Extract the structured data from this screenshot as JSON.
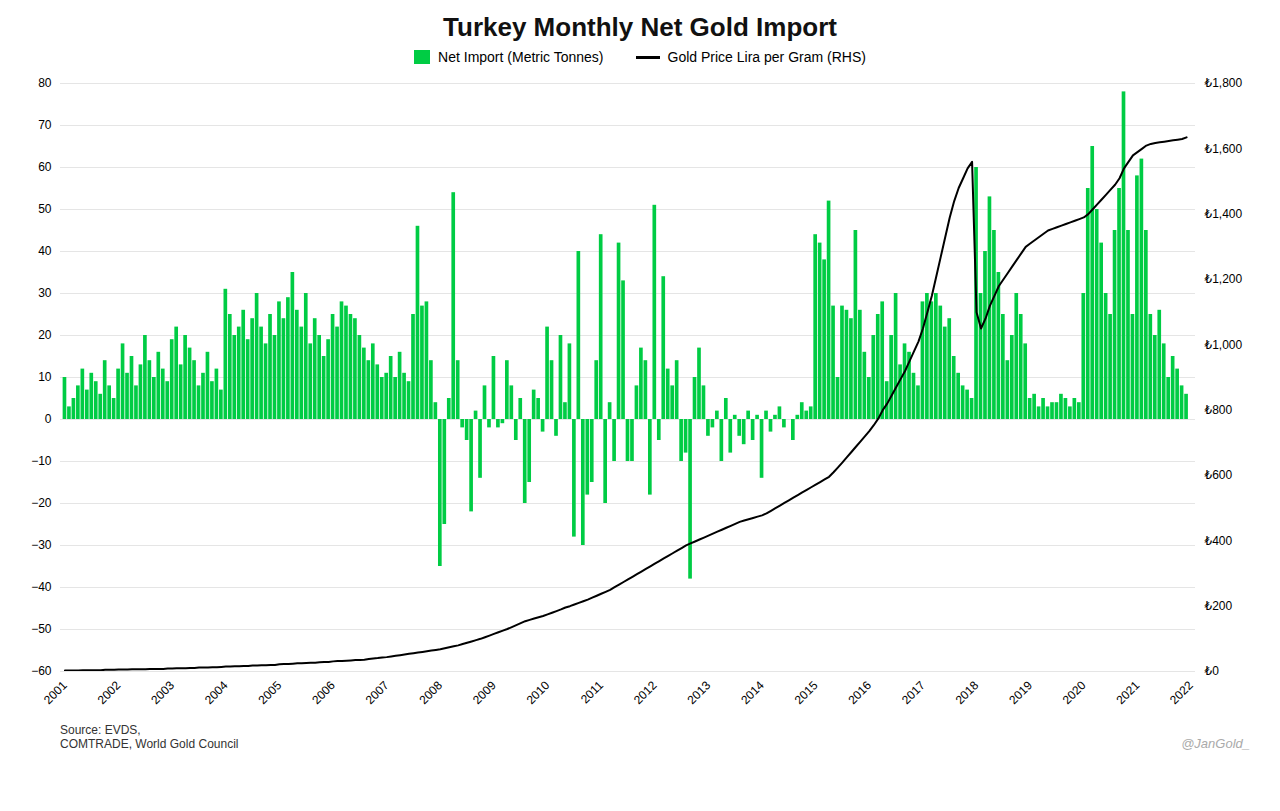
{
  "chart_data": {
    "type": "bar",
    "title": "Turkey Monthly Net Gold Import",
    "categories": [
      "2001",
      null,
      null,
      null,
      null,
      null,
      null,
      null,
      null,
      null,
      null,
      null,
      "2002",
      null,
      null,
      null,
      null,
      null,
      null,
      null,
      null,
      null,
      null,
      null,
      "2003",
      null,
      null,
      null,
      null,
      null,
      null,
      null,
      null,
      null,
      null,
      null,
      "2004",
      null,
      null,
      null,
      null,
      null,
      null,
      null,
      null,
      null,
      null,
      null,
      "2005",
      null,
      null,
      null,
      null,
      null,
      null,
      null,
      null,
      null,
      null,
      null,
      "2006",
      null,
      null,
      null,
      null,
      null,
      null,
      null,
      null,
      null,
      null,
      null,
      "2007",
      null,
      null,
      null,
      null,
      null,
      null,
      null,
      null,
      null,
      null,
      null,
      "2008",
      null,
      null,
      null,
      null,
      null,
      null,
      null,
      null,
      null,
      null,
      null,
      "2009",
      null,
      null,
      null,
      null,
      null,
      null,
      null,
      null,
      null,
      null,
      null,
      "2010",
      null,
      null,
      null,
      null,
      null,
      null,
      null,
      null,
      null,
      null,
      null,
      "2011",
      null,
      null,
      null,
      null,
      null,
      null,
      null,
      null,
      null,
      null,
      null,
      "2012",
      null,
      null,
      null,
      null,
      null,
      null,
      null,
      null,
      null,
      null,
      null,
      "2013",
      null,
      null,
      null,
      null,
      null,
      null,
      null,
      null,
      null,
      null,
      null,
      "2014",
      null,
      null,
      null,
      null,
      null,
      null,
      null,
      null,
      null,
      null,
      null,
      "2015",
      null,
      null,
      null,
      null,
      null,
      null,
      null,
      null,
      null,
      null,
      null,
      "2016",
      null,
      null,
      null,
      null,
      null,
      null,
      null,
      null,
      null,
      null,
      null,
      "2017",
      null,
      null,
      null,
      null,
      null,
      null,
      null,
      null,
      null,
      null,
      null,
      "2018",
      null,
      null,
      null,
      null,
      null,
      null,
      null,
      null,
      null,
      null,
      null,
      "2019",
      null,
      null,
      null,
      null,
      null,
      null,
      null,
      null,
      null,
      null,
      null,
      "2020",
      null,
      null,
      null,
      null,
      null,
      null,
      null,
      null,
      null,
      null,
      null,
      "2021",
      null,
      null,
      null,
      null,
      null,
      null,
      null,
      null,
      null,
      null,
      null,
      "2022"
    ],
    "series": [
      {
        "name": "Net Import (Metric Tonnes)",
        "type": "bar",
        "color": "#00cc44",
        "values": [
          10,
          3,
          5,
          8,
          12,
          7,
          11,
          9,
          6,
          14,
          8,
          5,
          12,
          18,
          11,
          15,
          8,
          13,
          20,
          14,
          10,
          16,
          12,
          9,
          19,
          22,
          13,
          20,
          17,
          14,
          8,
          11,
          16,
          9,
          12,
          7,
          31,
          25,
          20,
          22,
          26,
          19,
          24,
          30,
          22,
          18,
          25,
          20,
          28,
          24,
          29,
          35,
          26,
          22,
          30,
          18,
          24,
          20,
          15,
          19,
          25,
          22,
          28,
          27,
          25,
          24,
          20,
          17,
          14,
          18,
          13,
          10,
          11,
          15,
          10,
          16,
          11,
          9,
          25,
          46,
          27,
          28,
          14,
          4,
          -35,
          -25,
          5,
          54,
          14,
          -2,
          -5,
          -22,
          2,
          -14,
          8,
          -2,
          15,
          -2,
          -1,
          14,
          8,
          -5,
          5,
          -20,
          -15,
          7,
          5,
          -3,
          22,
          14,
          -4,
          20,
          4,
          18,
          -28,
          40,
          -30,
          -18,
          -15,
          14,
          44,
          -20,
          4,
          -10,
          42,
          33,
          -10,
          -10,
          8,
          17,
          14,
          -18,
          51,
          -5,
          34,
          12,
          8,
          14,
          -10,
          -8,
          -38,
          10,
          17,
          8,
          -4,
          -2,
          2,
          -10,
          5,
          -8,
          1,
          -4,
          -6,
          2,
          -5,
          1,
          -14,
          2,
          -3,
          1,
          3,
          -2,
          0,
          -5,
          1,
          4,
          2,
          3,
          44,
          42,
          38,
          52,
          27,
          10,
          27,
          26,
          24,
          45,
          26,
          16,
          10,
          20,
          25,
          28,
          9,
          20,
          30,
          13,
          18,
          16,
          11,
          8,
          28,
          30,
          28,
          30,
          27,
          22,
          24,
          15,
          11,
          8,
          7,
          5,
          60,
          30,
          40,
          53,
          45,
          35,
          25,
          14,
          20,
          30,
          25,
          18,
          5,
          6,
          3,
          5,
          3,
          4,
          4,
          6,
          5,
          3,
          5,
          4,
          30,
          55,
          65,
          50,
          42,
          30,
          25,
          45,
          55,
          78,
          45,
          25,
          58,
          62,
          45,
          25,
          20,
          26,
          18,
          10,
          15,
          12,
          8,
          6,
          null
        ]
      },
      {
        "name": "Gold Price Lira per Gram (RHS)",
        "type": "line",
        "color": "#000000",
        "axis": "y2",
        "values": [
          3,
          3,
          3,
          3,
          4,
          4,
          4,
          4,
          4,
          5,
          5,
          5,
          6,
          6,
          6,
          7,
          7,
          7,
          7,
          8,
          8,
          8,
          8,
          9,
          9,
          10,
          10,
          10,
          11,
          11,
          12,
          12,
          12,
          13,
          13,
          14,
          15,
          15,
          16,
          16,
          17,
          17,
          18,
          18,
          19,
          19,
          20,
          20,
          22,
          23,
          23,
          24,
          25,
          25,
          26,
          27,
          27,
          28,
          29,
          29,
          31,
          32,
          32,
          33,
          34,
          35,
          35,
          36,
          38,
          40,
          41,
          43,
          44,
          46,
          48,
          50,
          52,
          54,
          56,
          58,
          60,
          62,
          64,
          66,
          68,
          71,
          74,
          77,
          80,
          84,
          88,
          92,
          96,
          100,
          105,
          110,
          115,
          120,
          125,
          130,
          136,
          142,
          148,
          154,
          158,
          162,
          166,
          170,
          175,
          180,
          185,
          190,
          196,
          200,
          205,
          210,
          215,
          220,
          226,
          232,
          238,
          244,
          250,
          258,
          266,
          274,
          282,
          290,
          298,
          306,
          314,
          322,
          330,
          338,
          346,
          354,
          362,
          370,
          378,
          386,
          392,
          398,
          404,
          410,
          416,
          422,
          428,
          434,
          440,
          446,
          452,
          458,
          462,
          466,
          470,
          474,
          478,
          484,
          492,
          500,
          508,
          516,
          524,
          532,
          540,
          548,
          556,
          564,
          572,
          580,
          588,
          596,
          610,
          625,
          640,
          656,
          672,
          688,
          704,
          720,
          736,
          754,
          774,
          800,
          820,
          845,
          870,
          895,
          920,
          950,
          980,
          1010,
          1050,
          1100,
          1150,
          1210,
          1270,
          1330,
          1390,
          1440,
          1480,
          1510,
          1540,
          1560,
          1100,
          1050,
          1080,
          1120,
          1150,
          1180,
          1200,
          1220,
          1240,
          1260,
          1280,
          1300,
          1310,
          1320,
          1330,
          1340,
          1350,
          1355,
          1360,
          1365,
          1370,
          1375,
          1380,
          1385,
          1390,
          1400,
          1415,
          1430,
          1445,
          1460,
          1475,
          1490,
          1510,
          1540,
          1560,
          1580,
          1590,
          1600,
          1610,
          1615,
          1618,
          1620,
          1622,
          1624,
          1626,
          1628,
          1630,
          1635,
          null
        ]
      }
    ],
    "ylim": [
      -60,
      80
    ],
    "yticks": [
      -60,
      -50,
      -40,
      -30,
      -20,
      -10,
      0,
      10,
      20,
      30,
      40,
      50,
      60,
      70,
      80
    ],
    "y2lim": [
      0,
      1800
    ],
    "y2ticks": [
      {
        "value": 0,
        "label": "₺0"
      },
      {
        "value": 200,
        "label": "₺200"
      },
      {
        "value": 400,
        "label": "₺400"
      },
      {
        "value": 600,
        "label": "₺600"
      },
      {
        "value": 800,
        "label": "₺800"
      },
      {
        "value": 1000,
        "label": "₺1,000"
      },
      {
        "value": 1200,
        "label": "₺1,200"
      },
      {
        "value": 1400,
        "label": "₺1,400"
      },
      {
        "value": 1600,
        "label": "₺1,600"
      },
      {
        "value": 1800,
        "label": "₺1,800"
      }
    ],
    "grid": true,
    "legend": "top",
    "annotations": [
      "Source: EVDS,\nCOMTRADE, World Gold Council",
      "@JanGold_"
    ]
  }
}
